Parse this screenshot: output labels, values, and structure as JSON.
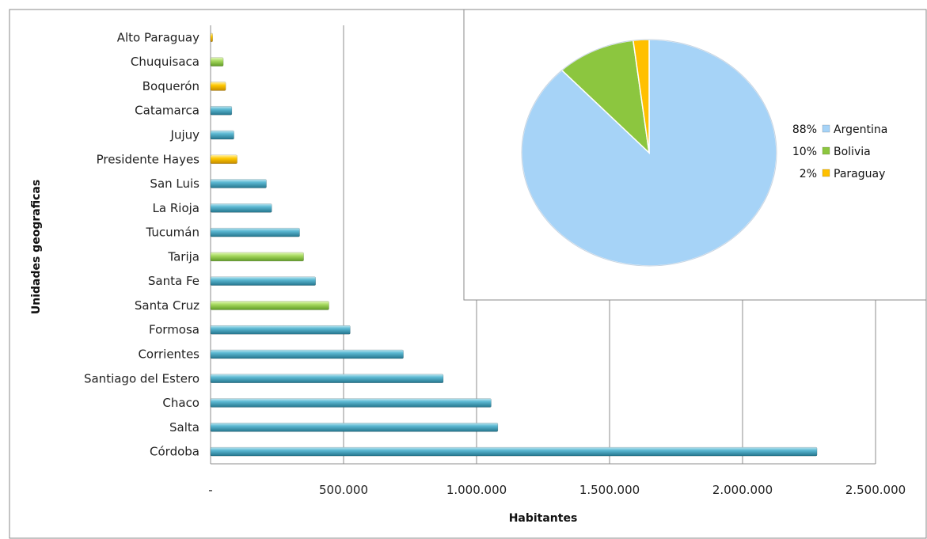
{
  "chart_data": [
    {
      "type": "bar",
      "orientation": "horizontal",
      "xlabel": "Habitantes",
      "ylabel": "Unidades geograficas",
      "xlim": [
        0,
        2500000
      ],
      "xticks": [
        0,
        500000,
        1000000,
        1500000,
        2000000,
        2500000
      ],
      "xtick_labels": [
        "-",
        "500.000",
        "1.000.000",
        "1.500.000",
        "2.000.000",
        "2.500.000"
      ],
      "grid": "vertical",
      "country_colors": {
        "Argentina": "#4bacc6",
        "Bolivia": "#9bd35a",
        "Paraguay": "#ffc000"
      },
      "bars": [
        {
          "category": "Córdoba",
          "country": "Argentina",
          "value": 2280000
        },
        {
          "category": "Salta",
          "country": "Argentina",
          "value": 1080000
        },
        {
          "category": "Chaco",
          "country": "Argentina",
          "value": 1055000
        },
        {
          "category": "Santiago del Estero",
          "country": "Argentina",
          "value": 875000
        },
        {
          "category": "Corrientes",
          "country": "Argentina",
          "value": 725000
        },
        {
          "category": "Formosa",
          "country": "Argentina",
          "value": 525000
        },
        {
          "category": "Santa Cruz",
          "country": "Bolivia",
          "value": 445000
        },
        {
          "category": "Santa Fe",
          "country": "Argentina",
          "value": 395000
        },
        {
          "category": "Tarija",
          "country": "Bolivia",
          "value": 350000
        },
        {
          "category": "Tucumán",
          "country": "Argentina",
          "value": 335000
        },
        {
          "category": "La Rioja",
          "country": "Argentina",
          "value": 230000
        },
        {
          "category": "San Luis",
          "country": "Argentina",
          "value": 210000
        },
        {
          "category": "Presidente Hayes",
          "country": "Paraguay",
          "value": 100000
        },
        {
          "category": "Jujuy",
          "country": "Argentina",
          "value": 88000
        },
        {
          "category": "Catamarca",
          "country": "Argentina",
          "value": 80000
        },
        {
          "category": "Boquerón",
          "country": "Paraguay",
          "value": 57000
        },
        {
          "category": "Chuquisaca",
          "country": "Bolivia",
          "value": 48000
        },
        {
          "category": "Alto Paraguay",
          "country": "Paraguay",
          "value": 8000
        }
      ]
    },
    {
      "type": "pie",
      "legend_position": "right",
      "slices": [
        {
          "name": "Argentina",
          "value": 88,
          "label": "88%",
          "color": "#a6d3f7"
        },
        {
          "name": "Bolivia",
          "value": 10,
          "label": "10%",
          "color": "#8cc63f"
        },
        {
          "name": "Paraguay",
          "value": 2,
          "label": "2%",
          "color": "#ffc000"
        }
      ]
    }
  ]
}
